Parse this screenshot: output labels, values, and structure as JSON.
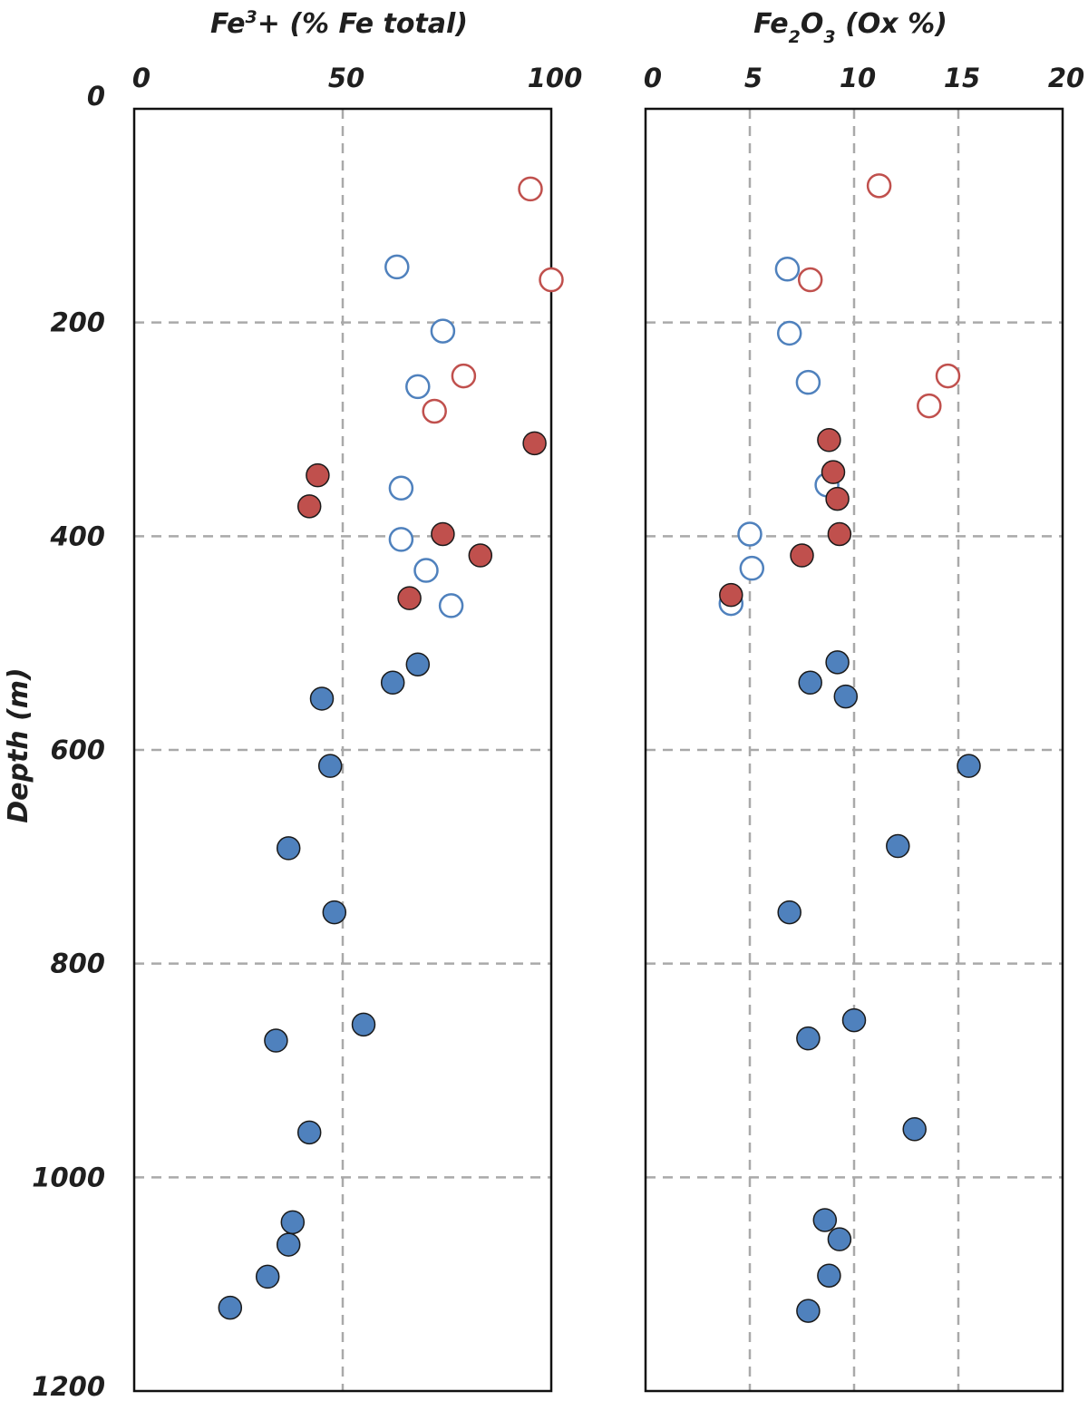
{
  "colors": {
    "red": "#c0504d",
    "blue": "#4f81bd",
    "red_fill": "#c0504d",
    "blue_fill": "#4f81bd",
    "marker_outline": "#1a1a1a",
    "grid": "#a9a9a9",
    "frame": "#111111"
  },
  "chart_data": [
    {
      "type": "scatter",
      "title_main": "Fe",
      "title_sup": "3",
      "title_rest": "+ (% Fe total)",
      "xlabel": "",
      "ylabel": "Depth (m)",
      "xlim": [
        0,
        100
      ],
      "ylim": [
        0,
        1200
      ],
      "y_inverted": true,
      "x_ticks": [
        "0",
        "50",
        "100"
      ],
      "y_ticks": [
        "0",
        "200",
        "400",
        "600",
        "800",
        "1000",
        "1200"
      ],
      "grid": true,
      "series": [
        {
          "marker": "open",
          "color": "red",
          "points": [
            [
              95,
              75
            ],
            [
              100,
              160
            ],
            [
              79,
              250
            ],
            [
              72,
              283
            ]
          ]
        },
        {
          "marker": "open",
          "color": "blue",
          "points": [
            [
              63,
              148
            ],
            [
              74,
              208
            ],
            [
              68,
              260
            ],
            [
              64,
              355
            ],
            [
              64,
              403
            ],
            [
              70,
              432
            ],
            [
              76,
              465
            ]
          ]
        },
        {
          "marker": "filled",
          "color": "red",
          "points": [
            [
              96,
              313
            ],
            [
              44,
              343
            ],
            [
              42,
              372
            ],
            [
              74,
              398
            ],
            [
              83,
              418
            ],
            [
              66,
              458
            ]
          ]
        },
        {
          "marker": "filled",
          "color": "blue",
          "points": [
            [
              68,
              520
            ],
            [
              62,
              537
            ],
            [
              45,
              552
            ],
            [
              47,
              615
            ],
            [
              37,
              692
            ],
            [
              48,
              752
            ],
            [
              55,
              857
            ],
            [
              34,
              872
            ],
            [
              42,
              958
            ],
            [
              38,
              1042
            ],
            [
              37,
              1063
            ],
            [
              32,
              1093
            ],
            [
              23,
              1122
            ]
          ]
        }
      ]
    },
    {
      "type": "scatter",
      "title_main": "Fe",
      "title_sub1": "2",
      "title_mid": "O",
      "title_sub2": "3",
      "title_rest": " (Ox %)",
      "xlabel": "",
      "ylabel": "",
      "xlim": [
        0,
        20
      ],
      "ylim": [
        0,
        1200
      ],
      "y_inverted": true,
      "x_ticks": [
        "0",
        "5",
        "10",
        "15",
        "20"
      ],
      "grid": true,
      "series": [
        {
          "marker": "open",
          "color": "red",
          "points": [
            [
              11.2,
              72
            ],
            [
              7.9,
              160
            ],
            [
              14.5,
              250
            ],
            [
              13.6,
              278
            ]
          ]
        },
        {
          "marker": "open",
          "color": "blue",
          "points": [
            [
              6.8,
              150
            ],
            [
              6.9,
              210
            ],
            [
              7.8,
              256
            ],
            [
              8.7,
              352
            ],
            [
              5,
              398
            ],
            [
              5.1,
              430
            ],
            [
              4.1,
              463
            ]
          ]
        },
        {
          "marker": "filled",
          "color": "red",
          "points": [
            [
              8.8,
              310
            ],
            [
              9,
              340
            ],
            [
              9.2,
              365
            ],
            [
              9.3,
              398
            ],
            [
              7.5,
              418
            ],
            [
              4.1,
              455
            ]
          ]
        },
        {
          "marker": "filled",
          "color": "blue",
          "points": [
            [
              9.2,
              518
            ],
            [
              7.9,
              537
            ],
            [
              9.6,
              550
            ],
            [
              15.5,
              615
            ],
            [
              12.1,
              690
            ],
            [
              6.9,
              752
            ],
            [
              10,
              853
            ],
            [
              7.8,
              870
            ],
            [
              12.9,
              955
            ],
            [
              8.6,
              1040
            ],
            [
              9.3,
              1058
            ],
            [
              8.8,
              1092
            ],
            [
              7.8,
              1125
            ]
          ]
        }
      ]
    }
  ]
}
